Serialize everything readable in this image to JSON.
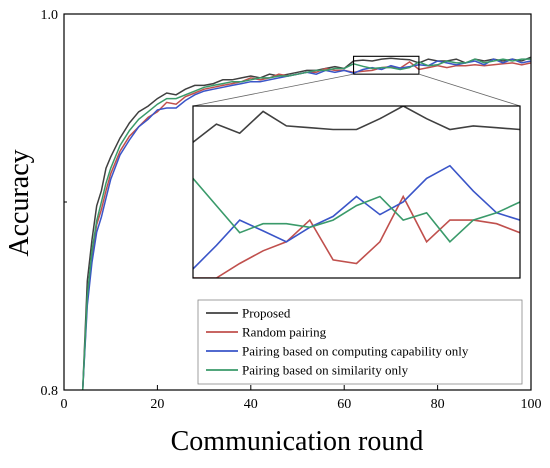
{
  "chart_data": {
    "type": "line",
    "title": "",
    "xlabel": "Communication round",
    "ylabel": "Accuracy",
    "xlim": [
      0,
      100
    ],
    "ylim": [
      0.8,
      1.0
    ],
    "x_ticks": [
      0,
      20,
      40,
      60,
      80,
      100
    ],
    "x_tick_labels": [
      "0",
      "20",
      "40",
      "60",
      "80",
      "100"
    ],
    "y_ticks": [
      0.8,
      1.0
    ],
    "y_tick_labels": [
      "0.8",
      "1.0"
    ],
    "grid": false,
    "legend_position": "bottom-right",
    "inset": {
      "x_range": [
        62,
        76
      ],
      "y_range": [
        0.968,
        0.9775
      ],
      "placement": "center-right"
    },
    "x": [
      4,
      5,
      6,
      7,
      8,
      9,
      10,
      12,
      14,
      16,
      18,
      20,
      22,
      24,
      26,
      28,
      30,
      32,
      34,
      36,
      38,
      40,
      42,
      44,
      46,
      48,
      50,
      52,
      54,
      56,
      58,
      60,
      62,
      64,
      66,
      68,
      70,
      72,
      74,
      76,
      78,
      80,
      82,
      84,
      86,
      88,
      90,
      92,
      94,
      96,
      98,
      100
    ],
    "series": [
      {
        "name": "Proposed",
        "color": "#404040",
        "values": [
          0.8,
          0.858,
          0.88,
          0.898,
          0.906,
          0.918,
          0.924,
          0.934,
          0.942,
          0.948,
          0.951,
          0.955,
          0.958,
          0.957,
          0.96,
          0.962,
          0.962,
          0.963,
          0.965,
          0.965,
          0.966,
          0.967,
          0.966,
          0.968,
          0.967,
          0.968,
          0.969,
          0.97,
          0.97,
          0.971,
          0.972,
          0.971,
          0.975,
          0.9755,
          0.975,
          0.976,
          0.9765,
          0.976,
          0.9757,
          0.974,
          0.976,
          0.975,
          0.975,
          0.976,
          0.974,
          0.976,
          0.975,
          0.976,
          0.975,
          0.976,
          0.975,
          0.977
        ]
      },
      {
        "name": "Random pairing",
        "color": "#c0504d",
        "values": [
          0.8,
          0.848,
          0.872,
          0.888,
          0.896,
          0.906,
          0.915,
          0.927,
          0.935,
          0.94,
          0.945,
          0.948,
          0.953,
          0.952,
          0.956,
          0.958,
          0.96,
          0.961,
          0.962,
          0.963,
          0.964,
          0.966,
          0.965,
          0.966,
          0.968,
          0.967,
          0.968,
          0.969,
          0.969,
          0.971,
          0.97,
          0.97,
          0.969,
          0.9695,
          0.97,
          0.9715,
          0.972,
          0.9712,
          0.9745,
          0.9705,
          0.9715,
          0.9725,
          0.9715,
          0.9725,
          0.9725,
          0.973,
          0.9725,
          0.973,
          0.9735,
          0.974,
          0.973,
          0.974
        ]
      },
      {
        "name": "Pairing based on computing capability only",
        "color": "#3a55c8",
        "values": [
          0.8,
          0.845,
          0.868,
          0.884,
          0.892,
          0.902,
          0.912,
          0.925,
          0.933,
          0.94,
          0.944,
          0.949,
          0.95,
          0.95,
          0.954,
          0.957,
          0.959,
          0.96,
          0.961,
          0.962,
          0.963,
          0.964,
          0.964,
          0.965,
          0.966,
          0.967,
          0.968,
          0.969,
          0.968,
          0.97,
          0.969,
          0.97,
          0.9685,
          0.9705,
          0.9715,
          0.9705,
          0.9725,
          0.9712,
          0.972,
          0.973,
          0.9725,
          0.975,
          0.974,
          0.973,
          0.974,
          0.975,
          0.973,
          0.976,
          0.974,
          0.976,
          0.974,
          0.975
        ]
      },
      {
        "name": "Pairing based on similarity only",
        "color": "#3a9a6a",
        "values": [
          0.8,
          0.85,
          0.874,
          0.89,
          0.9,
          0.91,
          0.918,
          0.93,
          0.938,
          0.944,
          0.948,
          0.952,
          0.955,
          0.955,
          0.957,
          0.959,
          0.961,
          0.962,
          0.963,
          0.964,
          0.964,
          0.965,
          0.966,
          0.966,
          0.967,
          0.967,
          0.968,
          0.969,
          0.97,
          0.97,
          0.971,
          0.971,
          0.9735,
          0.9722,
          0.971,
          0.9715,
          0.9715,
          0.9705,
          0.9715,
          0.9745,
          0.9725,
          0.973,
          0.975,
          0.974,
          0.974,
          0.976,
          0.974,
          0.975,
          0.976,
          0.975,
          0.976,
          0.976
        ]
      }
    ],
    "inset_data": {
      "x": [
        62,
        63,
        64,
        65,
        66,
        67,
        68,
        69,
        70,
        71,
        72,
        73,
        74,
        75,
        76
      ],
      "series": [
        {
          "name": "Proposed",
          "values": [
            0.9755,
            0.9765,
            0.976,
            0.9772,
            0.9764,
            0.9763,
            0.9762,
            0.9762,
            0.9768,
            0.9775,
            0.9768,
            0.9762,
            0.9764,
            0.9763,
            0.9762
          ]
        },
        {
          "name": "Random pairing",
          "values": [
            0.968,
            0.968,
            0.9688,
            0.9695,
            0.97,
            0.9712,
            0.969,
            0.9688,
            0.97,
            0.9725,
            0.97,
            0.9712,
            0.9712,
            0.971,
            0.9705
          ]
        },
        {
          "name": "Pairing based on computing capability only",
          "values": [
            0.9685,
            0.9698,
            0.9712,
            0.9706,
            0.97,
            0.9708,
            0.9714,
            0.9725,
            0.9715,
            0.9722,
            0.9735,
            0.9742,
            0.9728,
            0.9716,
            0.9712
          ]
        },
        {
          "name": "Pairing based on similarity only",
          "values": [
            0.9735,
            0.972,
            0.9705,
            0.971,
            0.971,
            0.9708,
            0.9712,
            0.972,
            0.9725,
            0.9712,
            0.9716,
            0.97,
            0.9712,
            0.9716,
            0.9722
          ]
        }
      ]
    }
  }
}
